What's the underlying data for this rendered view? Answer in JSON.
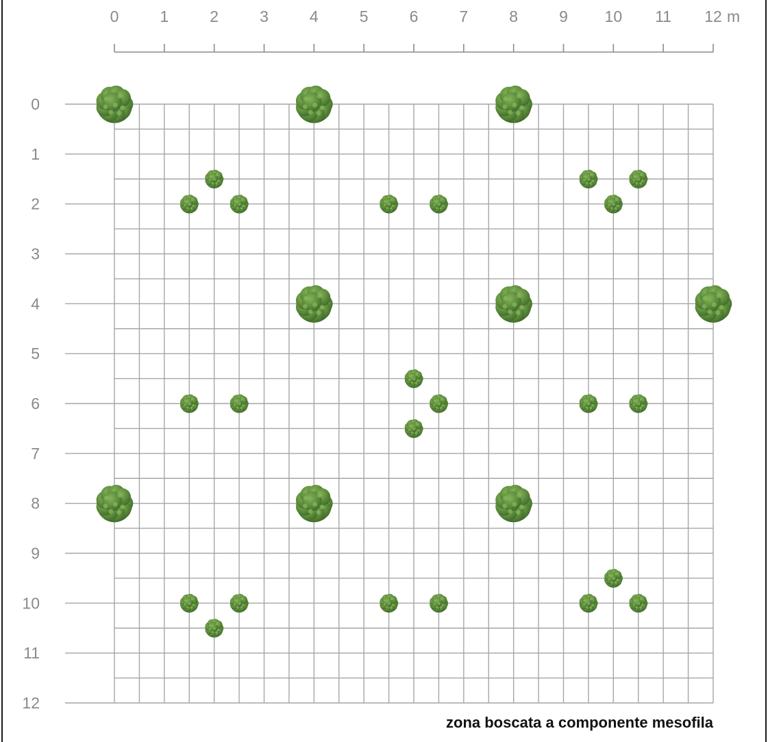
{
  "plan": {
    "caption": "zona boscata a componente mesofila",
    "unit": "m",
    "x_range": [
      0,
      12
    ],
    "y_range": [
      0,
      12
    ],
    "grid_step": 0.5,
    "x_ticks": [
      "0",
      "1",
      "2",
      "3",
      "4",
      "5",
      "6",
      "7",
      "8",
      "9",
      "10",
      "11",
      "12"
    ],
    "y_ticks": [
      "0",
      "1",
      "2",
      "3",
      "4",
      "5",
      "6",
      "7",
      "8",
      "9",
      "10",
      "11",
      "12"
    ],
    "colors": {
      "tree_dark": "#3f6a2a",
      "tree_mid": "#5f8f3d",
      "tree_light": "#86b35a",
      "grid": "#a6a6a6"
    },
    "large_trees": [
      {
        "x": 0,
        "y": 0
      },
      {
        "x": 4,
        "y": 0
      },
      {
        "x": 8,
        "y": 0
      },
      {
        "x": 4,
        "y": 4
      },
      {
        "x": 8,
        "y": 4
      },
      {
        "x": 12,
        "y": 4
      },
      {
        "x": 0,
        "y": 8
      },
      {
        "x": 4,
        "y": 8
      },
      {
        "x": 8,
        "y": 8
      }
    ],
    "shrubs": [
      {
        "x": 2,
        "y": 1.5
      },
      {
        "x": 1.5,
        "y": 2
      },
      {
        "x": 2.5,
        "y": 2
      },
      {
        "x": 5.5,
        "y": 2
      },
      {
        "x": 6.5,
        "y": 2
      },
      {
        "x": 9.5,
        "y": 1.5
      },
      {
        "x": 10.5,
        "y": 1.5
      },
      {
        "x": 10,
        "y": 2
      },
      {
        "x": 1.5,
        "y": 6
      },
      {
        "x": 2.5,
        "y": 6
      },
      {
        "x": 6,
        "y": 5.5
      },
      {
        "x": 6.5,
        "y": 6
      },
      {
        "x": 6,
        "y": 6.5
      },
      {
        "x": 9.5,
        "y": 6
      },
      {
        "x": 10.5,
        "y": 6
      },
      {
        "x": 1.5,
        "y": 10
      },
      {
        "x": 2.5,
        "y": 10
      },
      {
        "x": 2,
        "y": 10.5
      },
      {
        "x": 5.5,
        "y": 10
      },
      {
        "x": 6.5,
        "y": 10
      },
      {
        "x": 10,
        "y": 9.5
      },
      {
        "x": 9.5,
        "y": 10
      },
      {
        "x": 10.5,
        "y": 10
      }
    ]
  }
}
